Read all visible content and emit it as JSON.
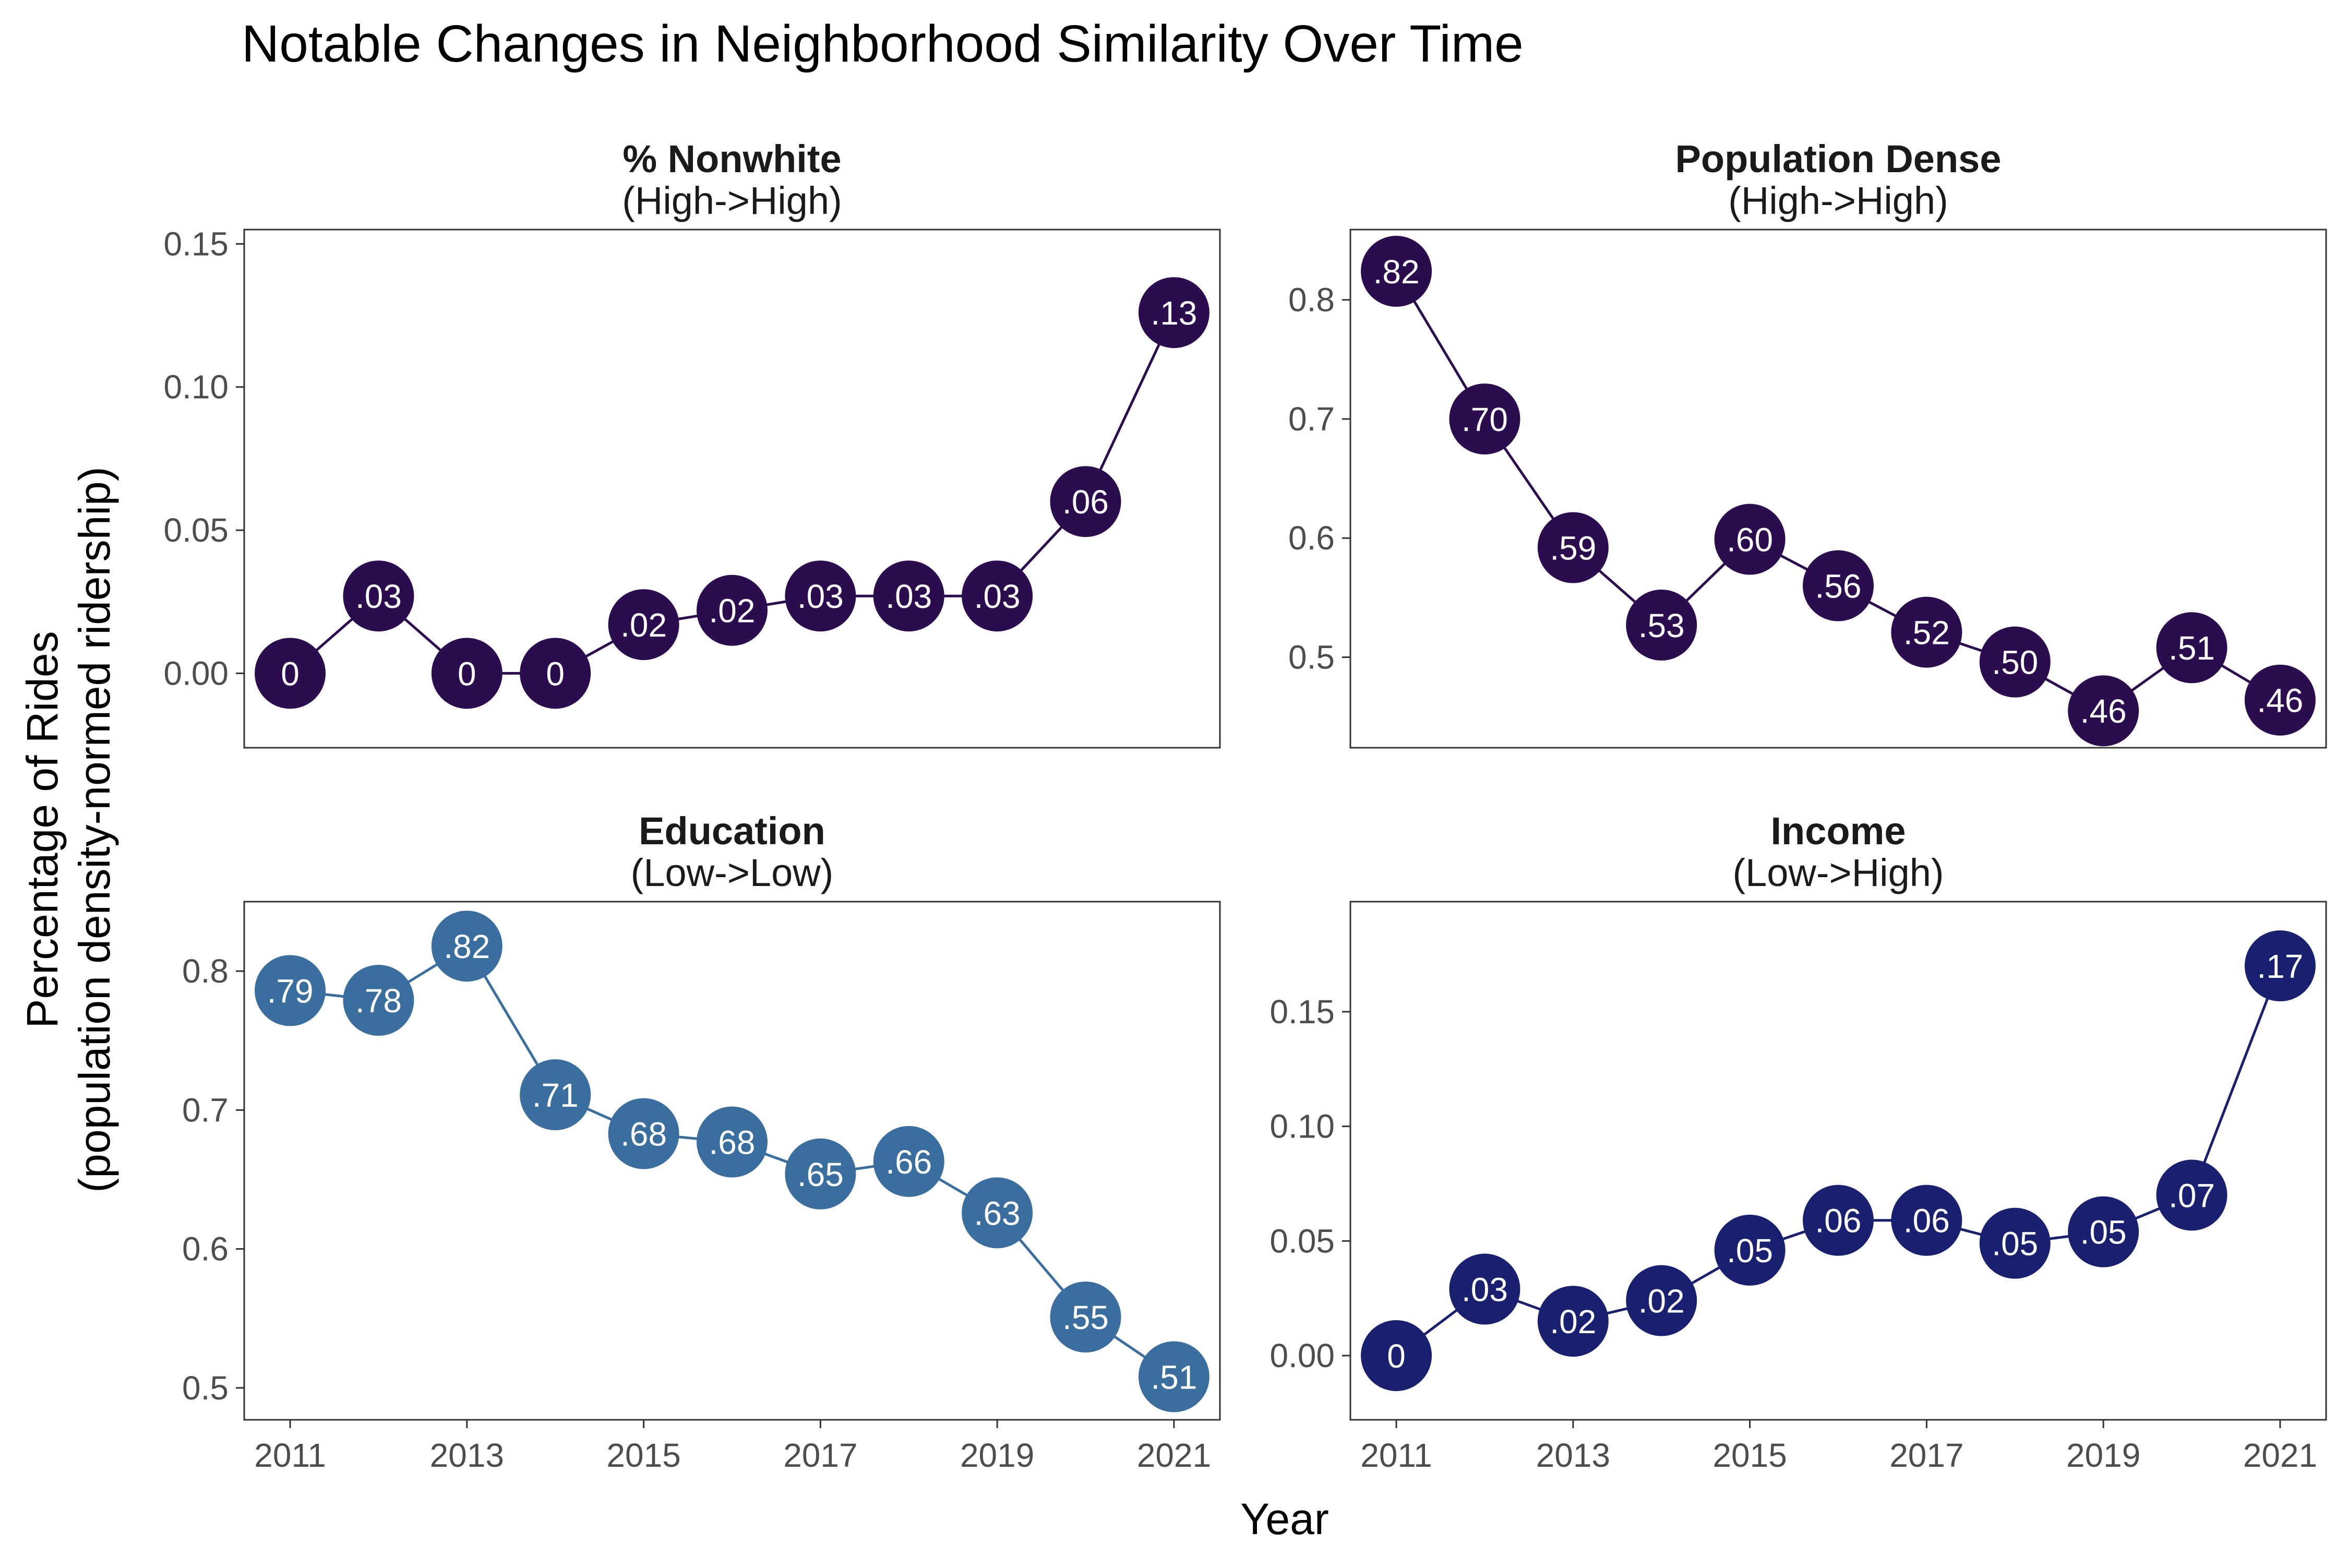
{
  "title": "Notable Changes in Neighborhood Similarity Over Time",
  "xlabel": "Year",
  "ylabel_line1": "Percentage of Rides",
  "ylabel_line2": "(population density-normed ridership)",
  "chart_data": [
    {
      "type": "line",
      "title": "% Nonwhite",
      "subtitle": "(High->High)",
      "color": "#2b0d4f",
      "x": [
        2011,
        2012,
        2013,
        2014,
        2015,
        2016,
        2017,
        2018,
        2019,
        2020,
        2021
      ],
      "values": [
        0.0,
        0.027,
        0.0,
        0.0,
        0.017,
        0.022,
        0.027,
        0.027,
        0.027,
        0.06,
        0.126
      ],
      "labels": [
        "0",
        ".03",
        "0",
        "0",
        ".02",
        ".02",
        ".03",
        ".03",
        ".03",
        ".06",
        ".13"
      ],
      "ylim": [
        -0.026,
        0.155
      ],
      "yticks": [
        0.0,
        0.05,
        0.1,
        0.15
      ],
      "ytick_labels": [
        "0.00",
        "0.05",
        "0.10",
        "0.15"
      ],
      "xticks": [
        2011,
        2013,
        2015,
        2017,
        2019,
        2021
      ],
      "xtick_labels": [
        "2011",
        "2013",
        "2015",
        "2017",
        "2019",
        "2021"
      ],
      "show_x_axis": false
    },
    {
      "type": "line",
      "title": "Population Dense",
      "subtitle": "(High->High)",
      "color": "#2b0d4f",
      "x": [
        2011,
        2012,
        2013,
        2014,
        2015,
        2016,
        2017,
        2018,
        2019,
        2020,
        2021
      ],
      "values": [
        0.824,
        0.7,
        0.592,
        0.527,
        0.599,
        0.56,
        0.521,
        0.496,
        0.455,
        0.508,
        0.464
      ],
      "labels": [
        ".82",
        ".70",
        ".59",
        ".53",
        ".60",
        ".56",
        ".52",
        ".50",
        ".46",
        ".51",
        ".46"
      ],
      "ylim": [
        0.424,
        0.859
      ],
      "yticks": [
        0.5,
        0.6,
        0.7,
        0.8
      ],
      "ytick_labels": [
        "0.5",
        "0.6",
        "0.7",
        "0.8"
      ],
      "xticks": [
        2011,
        2013,
        2015,
        2017,
        2019,
        2021
      ],
      "xtick_labels": [
        "2011",
        "2013",
        "2015",
        "2017",
        "2019",
        "2021"
      ],
      "show_x_axis": false
    },
    {
      "type": "line",
      "title": "Education",
      "subtitle": "(Low->Low)",
      "color": "#3a6e9e",
      "x": [
        2011,
        2012,
        2013,
        2014,
        2015,
        2016,
        2017,
        2018,
        2019,
        2020,
        2021
      ],
      "values": [
        0.786,
        0.779,
        0.818,
        0.711,
        0.683,
        0.677,
        0.654,
        0.663,
        0.626,
        0.551,
        0.508
      ],
      "labels": [
        ".79",
        ".78",
        ".82",
        ".71",
        ".68",
        ".68",
        ".65",
        ".66",
        ".63",
        ".55",
        ".51"
      ],
      "ylim": [
        0.477,
        0.85
      ],
      "yticks": [
        0.5,
        0.6,
        0.7,
        0.8
      ],
      "ytick_labels": [
        "0.5",
        "0.6",
        "0.7",
        "0.8"
      ],
      "xticks": [
        2011,
        2013,
        2015,
        2017,
        2019,
        2021
      ],
      "xtick_labels": [
        "2011",
        "2013",
        "2015",
        "2017",
        "2019",
        "2021"
      ],
      "show_x_axis": true
    },
    {
      "type": "line",
      "title": "Income",
      "subtitle": "(Low->High)",
      "color": "#1a2070",
      "x": [
        2011,
        2012,
        2013,
        2014,
        2015,
        2016,
        2017,
        2018,
        2019,
        2020,
        2021
      ],
      "values": [
        0.0,
        0.029,
        0.015,
        0.024,
        0.046,
        0.059,
        0.059,
        0.049,
        0.054,
        0.07,
        0.17
      ],
      "labels": [
        "0",
        ".03",
        ".02",
        ".02",
        ".05",
        ".06",
        ".06",
        ".05",
        ".05",
        ".07",
        ".17"
      ],
      "ylim": [
        -0.028,
        0.198
      ],
      "yticks": [
        0.0,
        0.05,
        0.1,
        0.15
      ],
      "ytick_labels": [
        "0.00",
        "0.05",
        "0.10",
        "0.15"
      ],
      "xticks": [
        2011,
        2013,
        2015,
        2017,
        2019,
        2021
      ],
      "xtick_labels": [
        "2011",
        "2013",
        "2015",
        "2017",
        "2019",
        "2021"
      ],
      "show_x_axis": true
    }
  ]
}
